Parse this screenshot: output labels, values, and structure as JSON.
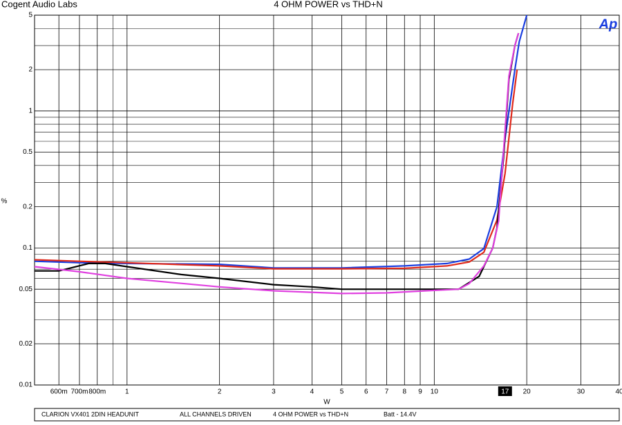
{
  "header": {
    "left": "Cogent Audio Labs",
    "logo": "Ap"
  },
  "chart_data": {
    "type": "line",
    "title": "4 OHM POWER vs THD+N",
    "xlabel": "W",
    "ylabel": "%",
    "xscale": "log",
    "yscale": "log",
    "grid": true,
    "xlim": [
      0.5,
      40
    ],
    "ylim": [
      0.01,
      5
    ],
    "xticks": [
      {
        "value": 0.6,
        "label": "600m"
      },
      {
        "value": 0.7,
        "label": "700m"
      },
      {
        "value": 0.8,
        "label": "800m"
      },
      1,
      2,
      3,
      4,
      5,
      6,
      7,
      8,
      9,
      10,
      20,
      30,
      40
    ],
    "xminor": [
      0.9
    ],
    "yticks": [
      5,
      2,
      1,
      0.5,
      0.2,
      0.1,
      0.05,
      0.02,
      0.01
    ],
    "yminor": [
      4,
      3,
      0.9,
      0.8,
      0.7,
      0.6,
      0.4,
      0.3,
      0.09,
      0.08,
      0.07,
      0.06,
      0.04,
      0.03
    ],
    "cursor": 17,
    "series": [
      {
        "color": "#1a3ee0",
        "x": [
          0.5,
          0.7,
          1,
          2,
          3,
          5,
          8,
          11,
          13,
          14.5,
          16,
          17,
          18.3,
          18.9,
          20
        ],
        "values": [
          0.08,
          0.078,
          0.077,
          0.076,
          0.0715,
          0.0715,
          0.074,
          0.077,
          0.083,
          0.099,
          0.2,
          0.63,
          2.0,
          3.2,
          5
        ]
      },
      {
        "color": "#e0281a",
        "x": [
          0.5,
          0.7,
          1,
          2,
          3,
          5,
          8,
          11,
          13,
          14.5,
          16,
          17,
          18,
          18.6
        ],
        "values": [
          0.082,
          0.08,
          0.078,
          0.074,
          0.0705,
          0.0705,
          0.071,
          0.074,
          0.079,
          0.093,
          0.16,
          0.35,
          1.13,
          2.0
        ]
      },
      {
        "color": "#000000",
        "x": [
          0.5,
          0.6,
          0.75,
          0.85,
          1,
          1.5,
          2,
          3,
          4,
          5,
          7,
          10,
          12,
          14,
          15.5,
          16,
          16.8,
          17.5,
          18.3,
          18.8
        ],
        "values": [
          0.068,
          0.068,
          0.077,
          0.077,
          0.073,
          0.064,
          0.06,
          0.054,
          0.052,
          0.05,
          0.05,
          0.05,
          0.05,
          0.062,
          0.1,
          0.14,
          0.45,
          1.7,
          3.0,
          3.7
        ]
      },
      {
        "color": "#e040e0",
        "x": [
          0.5,
          0.7,
          1,
          2,
          3,
          5,
          7,
          10,
          12,
          13,
          14.5,
          15.5,
          16.2,
          16.8,
          17.5,
          18.3,
          18.8
        ],
        "values": [
          0.073,
          0.067,
          0.06,
          0.052,
          0.0487,
          0.0465,
          0.047,
          0.049,
          0.05,
          0.055,
          0.074,
          0.1,
          0.157,
          0.5,
          1.8,
          3.0,
          3.7
        ]
      }
    ]
  },
  "footer": [
    "CLARION VX401  2DIN HEADUNIT",
    "ALL CHANNELS DRIVEN",
    "4 OHM  POWER vs THD+N",
    "Batt - 14.4V"
  ]
}
